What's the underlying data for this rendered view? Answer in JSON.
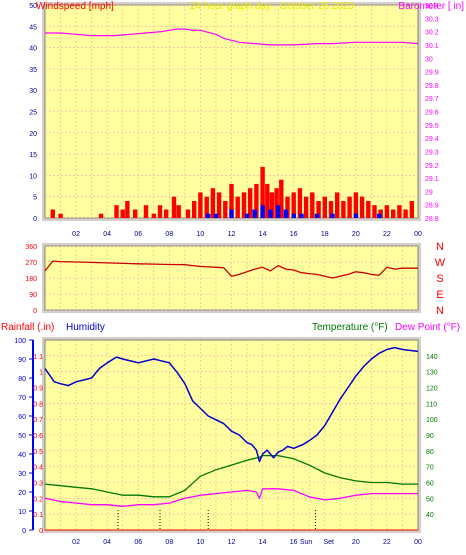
{
  "colors": {
    "background": "#ffffff",
    "plot_bg": "#ffffa0",
    "grid": "#f2a8a8",
    "frame": "#d4d0c8",
    "red": "#ff0000",
    "dark_red": "#cc0000",
    "blue": "#0000ff",
    "navy": "#0000cc",
    "magenta": "#ff00ff",
    "green": "#007700",
    "title_yellow": "#e8e800",
    "tick_text": "#00008b"
  },
  "chart_data": [
    {
      "type": "line",
      "title": "24 hour graph day : October 26 2023",
      "ylabel": "Windspeed [mph]",
      "y2label": "Barometer [ in]",
      "x_ticks": [
        "02",
        "04",
        "06",
        "08",
        "10",
        "12",
        "14",
        "16",
        "18",
        "20",
        "22",
        "00"
      ],
      "ylim": [
        0,
        50
      ],
      "y_ticks": [
        "0",
        "5",
        "10",
        "15",
        "20",
        "25",
        "30",
        "35",
        "40",
        "45",
        "50"
      ],
      "y2lim": [
        28.8,
        30.4
      ],
      "y2_ticks": [
        "28.8",
        "28.9",
        "29",
        "29.1",
        "29.2",
        "29.3",
        "29.4",
        "29.5",
        "29.6",
        "29.7",
        "29.8",
        "29.9",
        "30",
        "30.1",
        "30.2",
        "30.3",
        "30.4"
      ],
      "grid": true,
      "series": [
        {
          "axis": "y2",
          "x": [
            0,
            1,
            2,
            3,
            3.5,
            4.5,
            5.5,
            6.5,
            7.5,
            8,
            8.5,
            9,
            9.5,
            10,
            11,
            11.5,
            12.5,
            13.5,
            14.5,
            15,
            16,
            17.5,
            18.5,
            20,
            21.5,
            23,
            24
          ],
          "values": [
            30.19,
            30.19,
            30.18,
            30.17,
            30.17,
            30.17,
            30.18,
            30.19,
            30.2,
            30.21,
            30.22,
            30.22,
            30.21,
            30.21,
            30.18,
            30.15,
            30.12,
            30.11,
            30.1,
            30.1,
            30.1,
            30.11,
            30.11,
            30.12,
            30.12,
            30.12,
            30.11
          ]
        },
        {
          "type": "bar",
          "name": "Windspeed",
          "x": [
            0.5,
            1,
            3.6,
            4.6,
            5,
            5.3,
            5.8,
            6.5,
            7,
            7.4,
            7.8,
            8.3,
            8.6,
            9.2,
            9.6,
            10,
            10.4,
            10.8,
            11.2,
            11.6,
            12,
            12.4,
            12.8,
            13.2,
            13.6,
            14,
            14.3,
            14.6,
            14.9,
            15.2,
            15.6,
            16,
            16.4,
            16.8,
            17.2,
            17.6,
            18,
            18.4,
            18.8,
            19.2,
            19.6,
            20,
            20.4,
            20.8,
            21.2,
            21.6,
            22,
            22.4,
            22.8,
            23.2,
            23.6
          ],
          "values": [
            2,
            1,
            1,
            3,
            2,
            4,
            2,
            3,
            1,
            3,
            2,
            5,
            3,
            2,
            4,
            6,
            5,
            7,
            6,
            4,
            8,
            5,
            6,
            7,
            8,
            12,
            8,
            6,
            7,
            9,
            5,
            6,
            7,
            5,
            6,
            4,
            5,
            4,
            6,
            4,
            5,
            6,
            5,
            4,
            3,
            2,
            3,
            2,
            3,
            2,
            4
          ]
        },
        {
          "type": "bar",
          "name": "Wind gust",
          "x": [
            10.5,
            11,
            12,
            13,
            13.5,
            14,
            14.5,
            15,
            15.5,
            16,
            16.5,
            17.5,
            18.5,
            20,
            21.5
          ],
          "values": [
            1,
            1,
            2,
            1,
            2,
            3,
            2,
            3,
            2,
            1,
            1,
            1,
            1,
            1,
            1
          ]
        }
      ]
    },
    {
      "type": "line",
      "ylabel": "Wind direction",
      "ylim": [
        0,
        360
      ],
      "y_ticks": [
        "0",
        "90",
        "180",
        "270",
        "360"
      ],
      "compass_labels": [
        "N",
        "W",
        "S",
        "E",
        "N"
      ],
      "series": [
        {
          "x": [
            0,
            0.5,
            1,
            2,
            3,
            4,
            5,
            6,
            7,
            8,
            9,
            9.5,
            10,
            11,
            11.5,
            12,
            12.5,
            13,
            13.5,
            14,
            14.5,
            15,
            15.5,
            16,
            16.5,
            17,
            17.5,
            18,
            18.5,
            19,
            19.5,
            20,
            20.5,
            21,
            21.5,
            22,
            22.5,
            23,
            24
          ],
          "values": [
            220,
            275,
            272,
            270,
            268,
            265,
            262,
            260,
            258,
            256,
            255,
            250,
            245,
            240,
            238,
            190,
            200,
            215,
            230,
            240,
            220,
            250,
            230,
            225,
            210,
            205,
            200,
            190,
            180,
            190,
            200,
            215,
            210,
            200,
            195,
            240,
            230,
            235,
            235
          ]
        }
      ]
    },
    {
      "type": "line",
      "y_titles": [
        "Rainfall (.in)",
        "Humidity",
        "Temperature (°F)",
        "Dew Point (°F)"
      ],
      "x_ticks": [
        "02",
        "04",
        "06",
        "08",
        "10",
        "12",
        "14",
        "16",
        "Set",
        "20",
        "22",
        "00"
      ],
      "x_annotation": "Sun",
      "humidity_lim": [
        0,
        100
      ],
      "humidity_ticks": [
        "0",
        "10",
        "20",
        "30",
        "40",
        "50",
        "60",
        "70",
        "80",
        "90",
        "100"
      ],
      "rain_lim": [
        0,
        1.2
      ],
      "rain_ticks": [
        "0",
        "0.1",
        "0.2",
        "0.3",
        "0.4",
        "0.5",
        "0.6",
        "0.7",
        "0.8",
        "0.9",
        "1",
        "1.1"
      ],
      "temp_lim": [
        30,
        150
      ],
      "temp_ticks": [
        "40",
        "50",
        "60",
        "70",
        "80",
        "90",
        "100",
        "110",
        "120",
        "130",
        "140"
      ],
      "grid": true,
      "series": [
        {
          "name": "Humidity",
          "x": [
            0,
            0.6,
            1,
            1.5,
            2,
            3,
            3.5,
            4,
            4.6,
            5,
            5.5,
            6,
            7,
            8,
            8.5,
            9,
            9.5,
            10,
            10.5,
            11,
            11.5,
            12,
            12.5,
            13,
            13.3,
            13.6,
            13.8,
            14,
            14.3,
            14.7,
            15,
            15.3,
            15.6,
            16,
            16.6,
            17,
            17.5,
            18,
            18.5,
            19,
            19.5,
            20,
            20.5,
            21,
            21.5,
            22,
            22.5,
            23,
            24
          ],
          "values": [
            85,
            78,
            77,
            76,
            78,
            80,
            85,
            88,
            91,
            90,
            89,
            88,
            90,
            88,
            83,
            77,
            68,
            64,
            60,
            58,
            56,
            52,
            50,
            46,
            45,
            42,
            36,
            40,
            42,
            38,
            41,
            42,
            44,
            43,
            45,
            47,
            50,
            55,
            62,
            69,
            75,
            81,
            86,
            90,
            93,
            95,
            96,
            95,
            94
          ]
        },
        {
          "name": "Temperature",
          "x": [
            0,
            1,
            2,
            3,
            4,
            5,
            6,
            7,
            8,
            9,
            10,
            11,
            12,
            13,
            13.8,
            14,
            15,
            16,
            17,
            18,
            19,
            20,
            21,
            22,
            23,
            24
          ],
          "values": [
            59,
            58,
            57,
            56,
            54,
            52,
            52,
            51,
            51,
            55,
            64,
            68,
            71,
            74,
            76,
            77,
            77,
            75,
            71,
            66,
            63,
            61,
            60,
            60,
            59,
            59
          ]
        },
        {
          "name": "Dew Point",
          "x": [
            0,
            1,
            2,
            3,
            4,
            5,
            6,
            7,
            8,
            9,
            10,
            11,
            12,
            13,
            13.6,
            13.8,
            14,
            15,
            16,
            17,
            18,
            19,
            20,
            21,
            22,
            23,
            24
          ],
          "values": [
            50,
            48,
            47,
            46,
            46,
            45,
            46,
            46,
            47,
            50,
            52,
            53,
            54,
            55,
            54,
            50,
            56,
            56,
            55,
            51,
            49,
            50,
            52,
            53,
            53,
            53,
            53
          ]
        },
        {
          "name": "Rainfall",
          "x": [
            0,
            24
          ],
          "values": [
            0,
            0
          ]
        }
      ],
      "markers_x": [
        4.7,
        7.4,
        10.5,
        17.4
      ]
    }
  ]
}
